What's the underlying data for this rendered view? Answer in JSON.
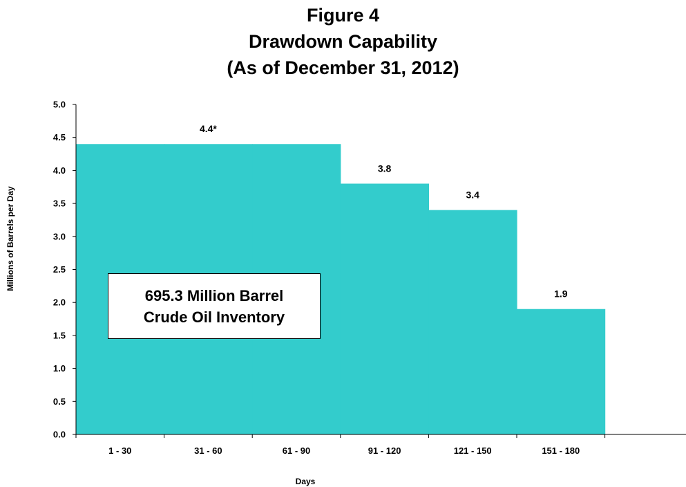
{
  "chart_data": {
    "type": "bar",
    "title": "Figure 4",
    "subtitle_lines": [
      "Drawdown Capability",
      "(As of December 31, 2012)"
    ],
    "categories": [
      "1 - 30",
      "31 - 60",
      "61 - 90",
      "91 - 120",
      "121 - 150",
      "151 - 180"
    ],
    "values": [
      4.4,
      4.4,
      4.4,
      3.8,
      3.4,
      1.9
    ],
    "data_labels": [
      {
        "category_span": [
          "1 - 30",
          "61 - 90"
        ],
        "value": 4.4,
        "text": "4.4*"
      },
      {
        "category_span": [
          "91 - 120",
          "91 - 120"
        ],
        "value": 3.8,
        "text": "3.8"
      },
      {
        "category_span": [
          "121 - 150",
          "121 - 150"
        ],
        "value": 3.4,
        "text": "3.4"
      },
      {
        "category_span": [
          "151 - 180",
          "151 - 180"
        ],
        "value": 1.9,
        "text": "1.9"
      }
    ],
    "xlabel": "Days",
    "ylabel": "Millions of Barrels per Day",
    "ylim": [
      0,
      5
    ],
    "yticks": [
      "0.0",
      "0.5",
      "1.0",
      "1.5",
      "2.0",
      "2.5",
      "3.0",
      "3.5",
      "4.0",
      "4.5",
      "5.0"
    ],
    "annotation_lines": [
      "695.3 Million Barrel",
      "Crude Oil Inventory"
    ],
    "grid": false,
    "bar_color": "#33CCCC"
  }
}
